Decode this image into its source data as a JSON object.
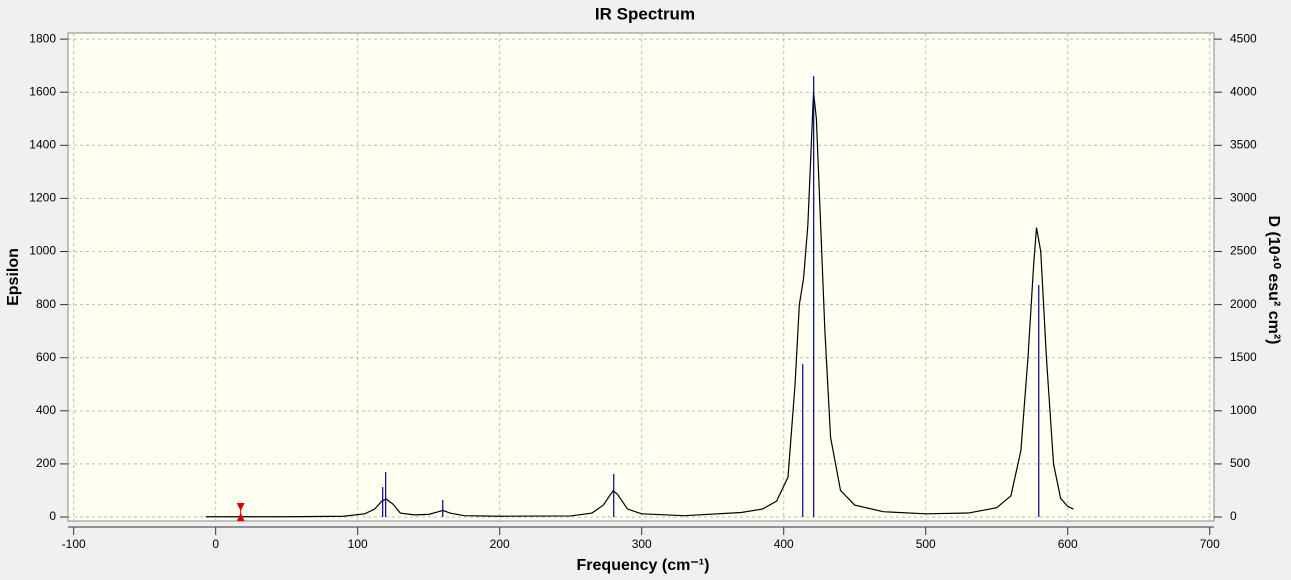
{
  "chart_data": {
    "type": "line",
    "title": "IR Spectrum",
    "x_label": "Frequency (cm⁻¹)",
    "y_label": "Epsilon",
    "y2_label": "D (10⁴⁰ esu² cm²)",
    "xlim": [
      -104,
      703
    ],
    "xticks": [
      -100,
      0,
      100,
      200,
      300,
      400,
      500,
      600,
      700
    ],
    "ylim": [
      -15,
      1823
    ],
    "yticks": [
      0,
      200,
      400,
      600,
      800,
      1000,
      1200,
      1400,
      1600,
      1800
    ],
    "y2lim": [
      -37.5,
      4557.5
    ],
    "y2ticks": [
      0,
      500,
      1000,
      1500,
      2000,
      2500,
      3000,
      3500,
      4000,
      4500
    ],
    "grid": true,
    "background": "#fffff2",
    "series": [
      {
        "color": "#000000",
        "style": "line",
        "x": [
          -7,
          50,
          90,
          105,
          112,
          117,
          120,
          125,
          130,
          140,
          150,
          157,
          160,
          165,
          175,
          200,
          250,
          265,
          273,
          278,
          280,
          283,
          290,
          300,
          330,
          370,
          385,
          395,
          403,
          408,
          411,
          414,
          417,
          419,
          421,
          423,
          426,
          429,
          433,
          440,
          450,
          470,
          500,
          530,
          550,
          560,
          567,
          572,
          576,
          578,
          581,
          585,
          590,
          595,
          600,
          604
        ],
        "values": [
          1,
          1,
          3,
          12,
          30,
          60,
          68,
          48,
          15,
          8,
          10,
          20,
          25,
          15,
          5,
          3,
          4,
          15,
          45,
          85,
          99,
          85,
          30,
          12,
          5,
          17,
          30,
          60,
          150,
          500,
          800,
          900,
          1100,
          1350,
          1600,
          1500,
          1100,
          700,
          300,
          100,
          45,
          20,
          12,
          15,
          35,
          80,
          250,
          600,
          950,
          1090,
          1000,
          600,
          200,
          70,
          40,
          30
        ]
      },
      {
        "color": "#000080",
        "style": "sticks",
        "axis": "y2",
        "x": [
          117.6,
          119.7,
          159.9,
          280.3,
          413.4,
          421.1,
          579.6
        ],
        "values": [
          282,
          424,
          160,
          405,
          1440,
          4151,
          2184
        ]
      }
    ],
    "marker": {
      "color": "#dd0000",
      "x": 17.6
    }
  }
}
